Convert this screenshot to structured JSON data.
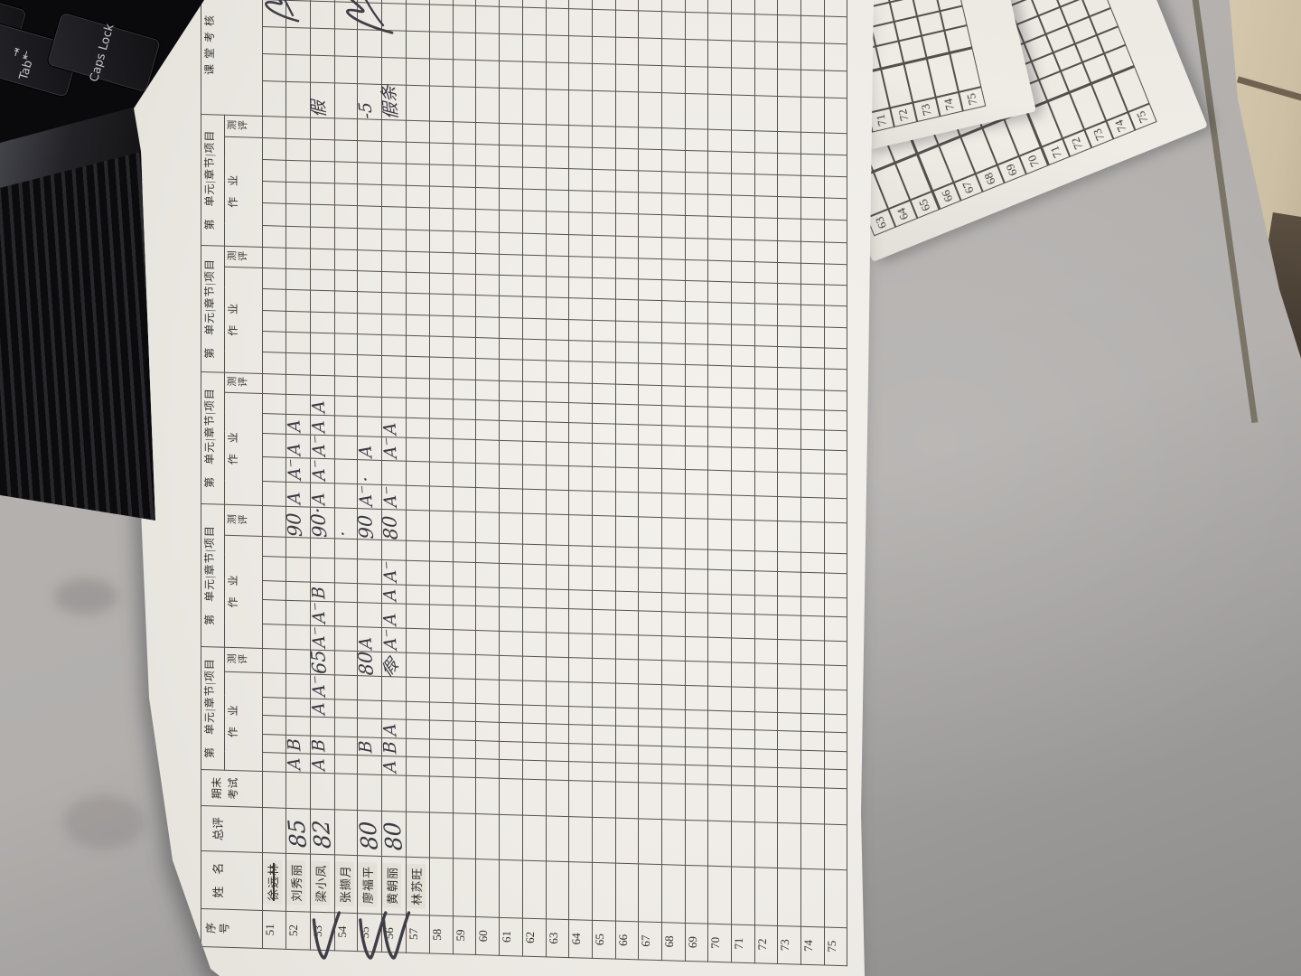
{
  "scene": {
    "description": "photo of a handwritten Chinese grade-record sheet lying on a gray desk",
    "desk_color": "#b2afad",
    "floor_tile_color": "#cdbfa4",
    "paper_color": "#efece7",
    "pen_color": "#3a3841"
  },
  "keyboard": {
    "keys": [
      {
        "label": "Tab",
        "icon": "tab-arrows-icon",
        "icon_glyphs": "⇥⇤"
      },
      {
        "label": "Caps Lock"
      }
    ]
  },
  "sheet": {
    "headers": {
      "index": "序号",
      "name": "姓　名",
      "total": "总评",
      "final_line1": "期末",
      "final_line2": "考试",
      "unit_group": "第　单元|章节|项目",
      "homework": "作　业",
      "assessment": "测评",
      "class_check": "课堂考核",
      "style": "学风"
    },
    "units_count": 5,
    "homework_cols": 5,
    "class_check_cols": 5,
    "row_numbers_from": 51,
    "row_numbers_to": 75,
    "students": [
      {
        "no": 51,
        "name": "徐远林",
        "name_struck": true,
        "total": "",
        "tick": false,
        "cells": {}
      },
      {
        "no": 52,
        "name": "刘秀丽",
        "name_struck": false,
        "total": "85",
        "tick": false,
        "cells": {
          "u1h1": "A",
          "u1h2": "B",
          "u2t": "90",
          "u3h1": "A",
          "u3h2": "A⁻",
          "u3h3": "A",
          "u3h4": "A"
        }
      },
      {
        "no": 53,
        "name": "梁小凤",
        "name_struck": false,
        "total": "82",
        "tick": true,
        "cells": {
          "u1h1": "A",
          "u1h2": "B",
          "u1h4": "A",
          "u1h5": "A⁻",
          "u1t": "65",
          "u2h1": "A⁻",
          "u2h2": "A⁻",
          "u2h3": "B",
          "u2t": "90·",
          "u3h1": "A",
          "u3h2": "A⁻",
          "u3h3": "A⁻",
          "u3h4": "A",
          "u3h5": "A",
          "class1": "假"
        }
      },
      {
        "no": 54,
        "name": "张撷月",
        "name_struck": false,
        "total": "",
        "tick": false,
        "cells": {
          "u2t": "·"
        }
      },
      {
        "no": 55,
        "name": "廖福平",
        "name_struck": false,
        "total": "80",
        "tick": true,
        "cells": {
          "u1h2": "B",
          "u1t": "80",
          "u2h1": "A",
          "u2t": "90",
          "u3h1": "A⁻",
          "u3h2": "·",
          "u3h3": "A",
          "class1": "-5"
        }
      },
      {
        "no": 56,
        "name": "黄朝丽",
        "name_struck": false,
        "total": "80",
        "tick": true,
        "cells": {
          "u1h1": "A",
          "u1h2": "B",
          "u1h3": "A",
          "u1t": "假",
          "u2h1": "A⁻",
          "u2h2": "A",
          "u2h3": "A",
          "u2h4": "A⁻",
          "u2t": "80",
          "u3h1": "A⁻",
          "u3h3": "A⁻",
          "u3h4": "A",
          "class1": "假条"
        }
      },
      {
        "no": 57,
        "name": "林苏旺",
        "name_struck": false,
        "total": "",
        "tick": false,
        "cells": {}
      },
      {
        "no": 58,
        "name": "",
        "cells": {}
      },
      {
        "no": 59,
        "name": "",
        "cells": {}
      },
      {
        "no": 60,
        "name": "",
        "cells": {}
      },
      {
        "no": 61,
        "name": "",
        "cells": {}
      },
      {
        "no": 62,
        "name": "",
        "cells": {}
      },
      {
        "no": 63,
        "name": "",
        "cells": {}
      },
      {
        "no": 64,
        "name": "",
        "cells": {}
      },
      {
        "no": 65,
        "name": "",
        "cells": {}
      },
      {
        "no": 66,
        "name": "",
        "cells": {}
      },
      {
        "no": 67,
        "name": "",
        "cells": {}
      },
      {
        "no": 68,
        "name": "",
        "cells": {}
      },
      {
        "no": 69,
        "name": "",
        "cells": {}
      },
      {
        "no": 70,
        "name": "",
        "cells": {}
      },
      {
        "no": 71,
        "name": "",
        "cells": {}
      },
      {
        "no": 72,
        "name": "",
        "cells": {}
      },
      {
        "no": 73,
        "name": "",
        "cells": {}
      },
      {
        "no": 74,
        "name": "",
        "cells": {}
      },
      {
        "no": 75,
        "name": "",
        "cells": {}
      }
    ],
    "annotations": {
      "checkmark_rows": [
        53,
        55,
        56
      ],
      "style_column_scribbles": [
        {
          "rows": "51-52",
          "meaning": "illegible-signature"
        },
        {
          "rows": "54-56",
          "meaning": "illegible-signature"
        }
      ]
    }
  },
  "under_sheets": {
    "middle": {
      "numbers": [
        "71",
        "72",
        "73",
        "74",
        "75"
      ]
    },
    "lower": {
      "numbers": [
        "63",
        "64",
        "65",
        "66",
        "67",
        "68",
        "69",
        "70",
        "71",
        "72",
        "73",
        "74",
        "75"
      ]
    }
  }
}
